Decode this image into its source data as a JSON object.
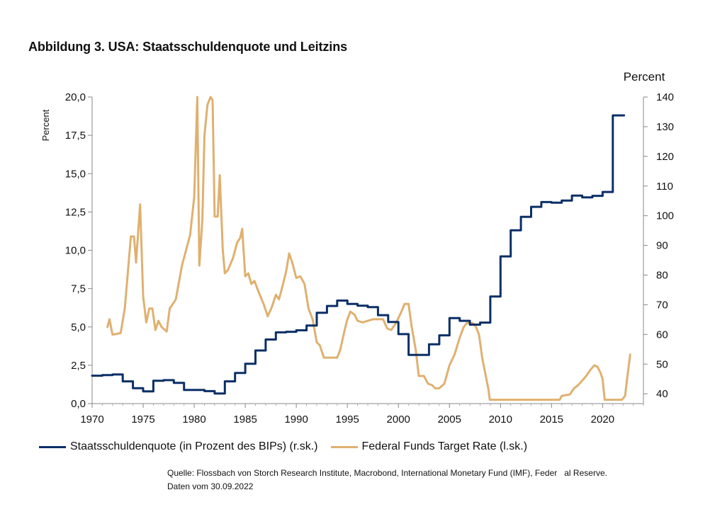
{
  "chart_data": {
    "type": "line",
    "title": "Abbildung 3. USA: Staatsschuldenquote und Leitzins",
    "xlabel": "",
    "ylabel": "Percent",
    "ylabel_right": "Percent",
    "xlim": [
      1970,
      2024
    ],
    "ylim": [
      0,
      20
    ],
    "ylim_right": [
      36.7,
      140
    ],
    "x_ticks": [
      1970,
      1975,
      1980,
      1985,
      1990,
      1995,
      2000,
      2005,
      2010,
      2015,
      2020
    ],
    "x_tick_labels": [
      "1970",
      "1975",
      "1980",
      "1985",
      "1990",
      "1995",
      "2000",
      "2005",
      "2010",
      "2015",
      "2020"
    ],
    "y_ticks": [
      0,
      2.5,
      5,
      7.5,
      10,
      12.5,
      15,
      17.5,
      20
    ],
    "y_tick_labels": [
      "0,0",
      "2,5",
      "5,0",
      "7,5",
      "10,0",
      "12,5",
      "15,0",
      "17,5",
      "20,0"
    ],
    "y_ticks_right": [
      40,
      50,
      60,
      70,
      80,
      90,
      100,
      110,
      120,
      130,
      140
    ],
    "y_tick_labels_right": [
      "40",
      "50",
      "60",
      "70",
      "80",
      "90",
      "100",
      "110",
      "120",
      "130",
      "140"
    ],
    "grid": false,
    "legend_position": "bottom",
    "series": [
      {
        "name": "Staatsschuldenquote (in Prozent des BIPs) (r.sk.)",
        "axis": "right",
        "color": "#0b2f66",
        "step": true,
        "points": [
          [
            1970,
            46.1
          ],
          [
            1971,
            46.3
          ],
          [
            1972,
            46.5
          ],
          [
            1973,
            44.2
          ],
          [
            1974,
            41.9
          ],
          [
            1975,
            40.8
          ],
          [
            1976,
            44.4
          ],
          [
            1977,
            44.6
          ],
          [
            1978,
            43.7
          ],
          [
            1979,
            41.3
          ],
          [
            1980,
            41.3
          ],
          [
            1981,
            40.9
          ],
          [
            1982,
            40.1
          ],
          [
            1983,
            44.2
          ],
          [
            1984,
            47.0
          ],
          [
            1985,
            50.1
          ],
          [
            1986,
            54.6
          ],
          [
            1987,
            58.3
          ],
          [
            1988,
            60.7
          ],
          [
            1989,
            60.9
          ],
          [
            1990,
            61.4
          ],
          [
            1991,
            63.0
          ],
          [
            1992,
            67.3
          ],
          [
            1993,
            69.6
          ],
          [
            1994,
            71.4
          ],
          [
            1995,
            70.3
          ],
          [
            1996,
            69.7
          ],
          [
            1997,
            69.2
          ],
          [
            1998,
            66.5
          ],
          [
            1999,
            64.2
          ],
          [
            2000,
            60.1
          ],
          [
            2001,
            53.1
          ],
          [
            2002,
            53.1
          ],
          [
            2003,
            56.7
          ],
          [
            2004,
            59.7
          ],
          [
            2005,
            65.5
          ],
          [
            2006,
            64.6
          ],
          [
            2007,
            63.3
          ],
          [
            2008,
            64.0
          ],
          [
            2009,
            72.8
          ],
          [
            2010,
            86.3
          ],
          [
            2011,
            95.1
          ],
          [
            2012,
            99.6
          ],
          [
            2013,
            103.0
          ],
          [
            2014,
            104.6
          ],
          [
            2015,
            104.4
          ],
          [
            2016,
            105.1
          ],
          [
            2017,
            106.8
          ],
          [
            2018,
            106.2
          ],
          [
            2019,
            106.7
          ],
          [
            2020,
            108.0
          ],
          [
            2021,
            133.8
          ],
          [
            2022.1,
            133.8
          ]
        ]
      },
      {
        "name": "Federal Funds Target Rate (l.sk.)",
        "axis": "left",
        "color": "#e0b070",
        "step": false,
        "points": [
          [
            1971.5,
            5.0
          ],
          [
            1971.7,
            5.5
          ],
          [
            1972.0,
            4.5
          ],
          [
            1972.8,
            4.6
          ],
          [
            1973.2,
            6.2
          ],
          [
            1973.8,
            10.9
          ],
          [
            1974.1,
            10.9
          ],
          [
            1974.3,
            9.2
          ],
          [
            1974.7,
            13.0
          ],
          [
            1975.0,
            7.0
          ],
          [
            1975.3,
            5.3
          ],
          [
            1975.6,
            6.2
          ],
          [
            1975.9,
            6.2
          ],
          [
            1976.2,
            4.8
          ],
          [
            1976.5,
            5.4
          ],
          [
            1976.8,
            5.0
          ],
          [
            1977.3,
            4.7
          ],
          [
            1977.6,
            6.2
          ],
          [
            1978.2,
            6.8
          ],
          [
            1978.8,
            9.0
          ],
          [
            1979.2,
            10.0
          ],
          [
            1979.6,
            11.0
          ],
          [
            1980.0,
            13.5
          ],
          [
            1980.3,
            20.0
          ],
          [
            1980.5,
            9.0
          ],
          [
            1980.8,
            12.0
          ],
          [
            1981.0,
            17.5
          ],
          [
            1981.3,
            19.5
          ],
          [
            1981.6,
            20.0
          ],
          [
            1981.8,
            19.8
          ],
          [
            1982.0,
            12.2
          ],
          [
            1982.3,
            12.2
          ],
          [
            1982.5,
            14.9
          ],
          [
            1982.8,
            10.0
          ],
          [
            1983.0,
            8.5
          ],
          [
            1983.3,
            8.7
          ],
          [
            1983.8,
            9.5
          ],
          [
            1984.2,
            10.5
          ],
          [
            1984.5,
            10.8
          ],
          [
            1984.7,
            11.4
          ],
          [
            1985.0,
            8.3
          ],
          [
            1985.3,
            8.5
          ],
          [
            1985.6,
            7.8
          ],
          [
            1985.9,
            8.0
          ],
          [
            1986.3,
            7.3
          ],
          [
            1986.8,
            6.5
          ],
          [
            1987.2,
            5.7
          ],
          [
            1987.6,
            6.3
          ],
          [
            1988.0,
            7.1
          ],
          [
            1988.3,
            6.8
          ],
          [
            1988.7,
            7.8
          ],
          [
            1989.0,
            8.6
          ],
          [
            1989.3,
            9.8
          ],
          [
            1989.6,
            9.2
          ],
          [
            1990.0,
            8.2
          ],
          [
            1990.4,
            8.3
          ],
          [
            1990.8,
            7.8
          ],
          [
            1991.2,
            6.2
          ],
          [
            1991.6,
            5.5
          ],
          [
            1992.0,
            4.0
          ],
          [
            1992.3,
            3.8
          ],
          [
            1992.7,
            3.0
          ],
          [
            1993.0,
            3.0
          ],
          [
            1993.7,
            3.0
          ],
          [
            1994.0,
            3.0
          ],
          [
            1994.3,
            3.5
          ],
          [
            1994.7,
            4.7
          ],
          [
            1995.0,
            5.5
          ],
          [
            1995.3,
            6.0
          ],
          [
            1995.7,
            5.8
          ],
          [
            1996.0,
            5.4
          ],
          [
            1996.5,
            5.3
          ],
          [
            1997.0,
            5.4
          ],
          [
            1997.5,
            5.5
          ],
          [
            1998.0,
            5.5
          ],
          [
            1998.5,
            5.5
          ],
          [
            1998.9,
            4.9
          ],
          [
            1999.3,
            4.8
          ],
          [
            1999.8,
            5.3
          ],
          [
            2000.3,
            6.0
          ],
          [
            2000.6,
            6.5
          ],
          [
            2001.0,
            6.5
          ],
          [
            2001.3,
            5.0
          ],
          [
            2001.7,
            3.5
          ],
          [
            2002.0,
            1.8
          ],
          [
            2002.5,
            1.8
          ],
          [
            2002.9,
            1.3
          ],
          [
            2003.3,
            1.2
          ],
          [
            2003.6,
            1.0
          ],
          [
            2004.0,
            1.0
          ],
          [
            2004.5,
            1.3
          ],
          [
            2005.0,
            2.5
          ],
          [
            2005.5,
            3.2
          ],
          [
            2006.0,
            4.3
          ],
          [
            2006.4,
            5.0
          ],
          [
            2006.7,
            5.25
          ],
          [
            2007.3,
            5.25
          ],
          [
            2007.6,
            5.0
          ],
          [
            2007.9,
            4.5
          ],
          [
            2008.2,
            3.0
          ],
          [
            2008.5,
            2.0
          ],
          [
            2008.8,
            1.0
          ],
          [
            2008.95,
            0.25
          ],
          [
            2015.8,
            0.25
          ],
          [
            2016.0,
            0.5
          ],
          [
            2016.8,
            0.6
          ],
          [
            2017.2,
            1.0
          ],
          [
            2017.6,
            1.2
          ],
          [
            2018.0,
            1.5
          ],
          [
            2018.4,
            1.8
          ],
          [
            2018.8,
            2.2
          ],
          [
            2019.2,
            2.5
          ],
          [
            2019.5,
            2.4
          ],
          [
            2019.8,
            2.0
          ],
          [
            2020.0,
            1.6
          ],
          [
            2020.2,
            0.25
          ],
          [
            2021.9,
            0.25
          ],
          [
            2022.2,
            0.5
          ],
          [
            2022.4,
            1.6
          ],
          [
            2022.7,
            3.2
          ]
        ]
      }
    ]
  },
  "source_line1": "Quelle: Flossbach von Storch Research Institute, Macrobond, International Monetary Fund (IMF), Feder   al Reserve.",
  "source_line2": "Daten vom 30.09.2022"
}
